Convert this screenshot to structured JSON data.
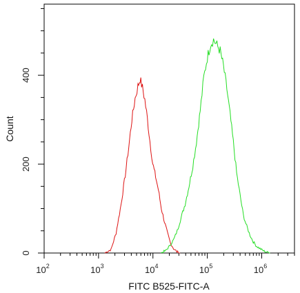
{
  "chart_data": {
    "type": "line",
    "title": "",
    "xlabel": "FITC B525-FITC-A",
    "ylabel": "Count",
    "x_scale": "log",
    "xlim": [
      100,
      4000000
    ],
    "ylim": [
      0,
      560
    ],
    "grid": false,
    "x_ticks": [
      {
        "base": "10",
        "exp": "2",
        "value": 100
      },
      {
        "base": "10",
        "exp": "3",
        "value": 1000
      },
      {
        "base": "10",
        "exp": "4",
        "value": 10000
      },
      {
        "base": "10",
        "exp": "5",
        "value": 100000
      },
      {
        "base": "10",
        "exp": "6",
        "value": 1000000
      }
    ],
    "y_ticks": [
      {
        "label": "0",
        "value": 0
      },
      {
        "label": "200",
        "value": 200
      },
      {
        "label": "400",
        "value": 400
      }
    ],
    "series": [
      {
        "color": "#dd1111",
        "x": [
          1300,
          1700,
          2100,
          2600,
          3100,
          3600,
          4100,
          4700,
          5300,
          5800,
          6400,
          7100,
          7900,
          8800,
          9900,
          11200,
          12600,
          14300,
          16300,
          18500,
          21000,
          24000,
          27500,
          31500
        ],
        "y": [
          0,
          8,
          45,
          110,
          175,
          240,
          300,
          348,
          375,
          392,
          372,
          345,
          302,
          252,
          202,
          172,
          142,
          100,
          70,
          45,
          22,
          10,
          3,
          0
        ]
      },
      {
        "color": "#22dd22",
        "x": [
          14000,
          17000,
          20000,
          24000,
          28000,
          33000,
          39000,
          46000,
          54000,
          63000,
          74000,
          86000,
          100000,
          115000,
          130000,
          150000,
          172000,
          198000,
          228000,
          262000,
          300000,
          345000,
          400000,
          460000,
          530000,
          610000,
          700000,
          810000,
          930000,
          1070000,
          1230000,
          1420000
        ],
        "y": [
          0,
          5,
          15,
          30,
          50,
          80,
          110,
          150,
          195,
          250,
          320,
          395,
          440,
          470,
          480,
          468,
          455,
          420,
          370,
          312,
          250,
          180,
          130,
          85,
          60,
          40,
          25,
          15,
          10,
          5,
          2,
          0
        ]
      }
    ]
  }
}
